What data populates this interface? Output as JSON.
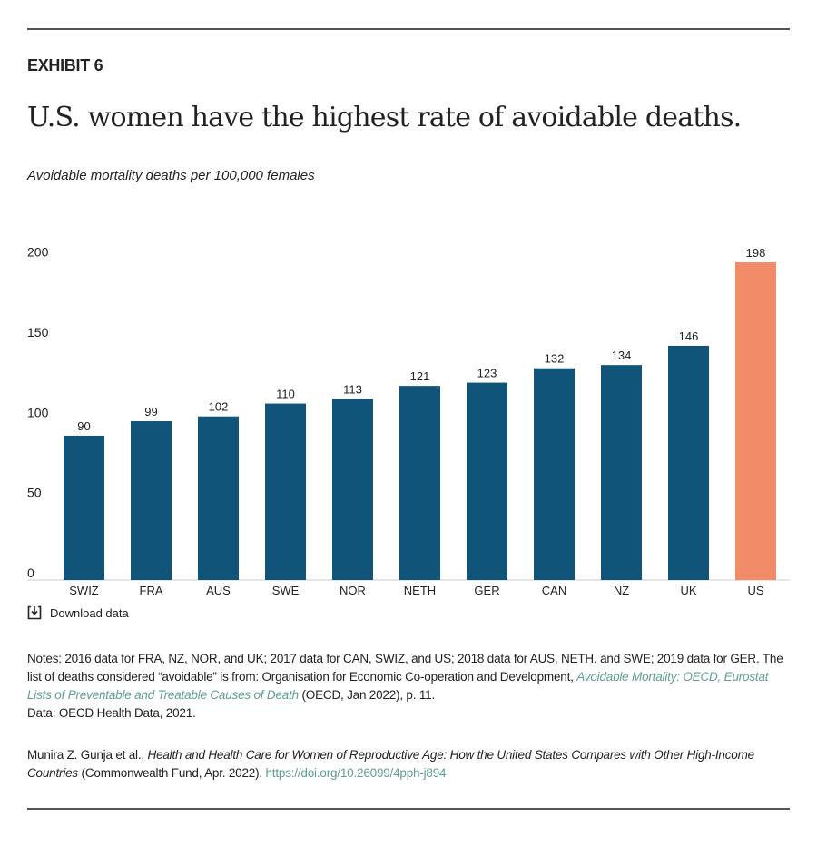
{
  "exhibit": "EXHIBIT 6",
  "title": "U.S. women have the highest rate of avoidable deaths.",
  "subtitle": "Avoidable mortality deaths per 100,000 females",
  "download_label": "Download data",
  "icon": "download-icon",
  "colors": {
    "bar": "#10547a",
    "highlight": "#f28b67",
    "link": "#5fa08a"
  },
  "chart_data": {
    "type": "bar",
    "title": "U.S. women have the highest rate of avoidable deaths.",
    "ylabel": "Avoidable mortality deaths per 100,000 females",
    "categories": [
      "SWIZ",
      "FRA",
      "AUS",
      "SWE",
      "NOR",
      "NETH",
      "GER",
      "CAN",
      "NZ",
      "UK",
      "US"
    ],
    "values": [
      90,
      99,
      102,
      110,
      113,
      121,
      123,
      132,
      134,
      146,
      198
    ],
    "highlight": "US",
    "ylim": [
      0,
      200
    ],
    "yticks": [
      0,
      50,
      100,
      150,
      200
    ],
    "grid": false,
    "data_labels": true
  },
  "notes": {
    "line1": "Notes: 2016 data for FRA, NZ, NOR, and UK; 2017 data for CAN, SWIZ, and US; 2018 data for AUS, NETH, and SWE; 2019 data for GER. The list of deaths considered “avoidable” is from: Organisation for Economic Co-operation and Development, ",
    "link": "Avoidable Mortality: OECD, Eurostat Lists of Preventable and Treatable Causes of Death",
    "after_link": " (OECD, Jan 2022), p. 11.",
    "data": "Data: OECD Health Data, 2021."
  },
  "citation": {
    "authors": "Munira Z. Gunja et al., ",
    "work": "Health and Health Care for Women of Reproductive Age: How the United States Compares with Other High-Income Countries",
    "publisher": " (Commonwealth Fund, Apr. 2022). ",
    "doi": "https://doi.org/10.26099/4pph-j894"
  }
}
